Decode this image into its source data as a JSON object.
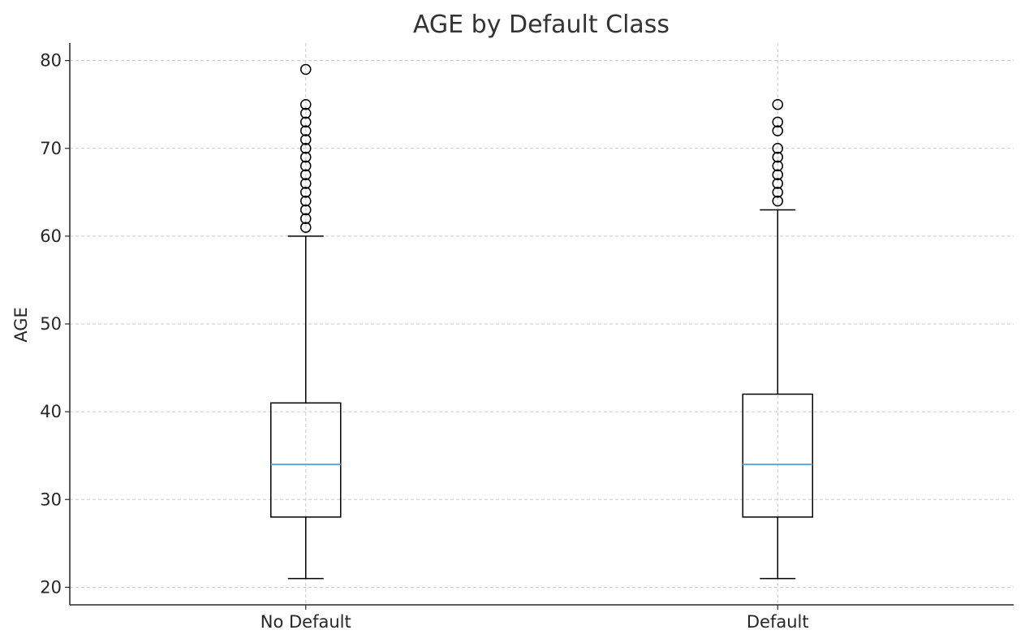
{
  "chart_data": {
    "type": "box",
    "title": "AGE by Default Class",
    "xlabel": "",
    "ylabel": "AGE",
    "ylim": [
      18,
      82
    ],
    "yticks": [
      20,
      30,
      40,
      50,
      60,
      70,
      80
    ],
    "grid": true,
    "categories": [
      "No Default",
      "Default"
    ],
    "boxes": [
      {
        "category": "No Default",
        "whisker_low": 21,
        "q1": 28,
        "median": 34,
        "q3": 41,
        "whisker_high": 60,
        "outliers": [
          61,
          62,
          63,
          64,
          65,
          66,
          67,
          68,
          69,
          70,
          71,
          72,
          73,
          74,
          75,
          79
        ]
      },
      {
        "category": "Default",
        "whisker_low": 21,
        "q1": 28,
        "median": 34,
        "q3": 42,
        "whisker_high": 63,
        "outliers": [
          64,
          65,
          66,
          67,
          68,
          69,
          70,
          72,
          73,
          75
        ]
      }
    ],
    "colors": {
      "median": "#5DADE2",
      "box": "#000000",
      "grid": "#c8c8c8",
      "axis": "#262626"
    }
  }
}
